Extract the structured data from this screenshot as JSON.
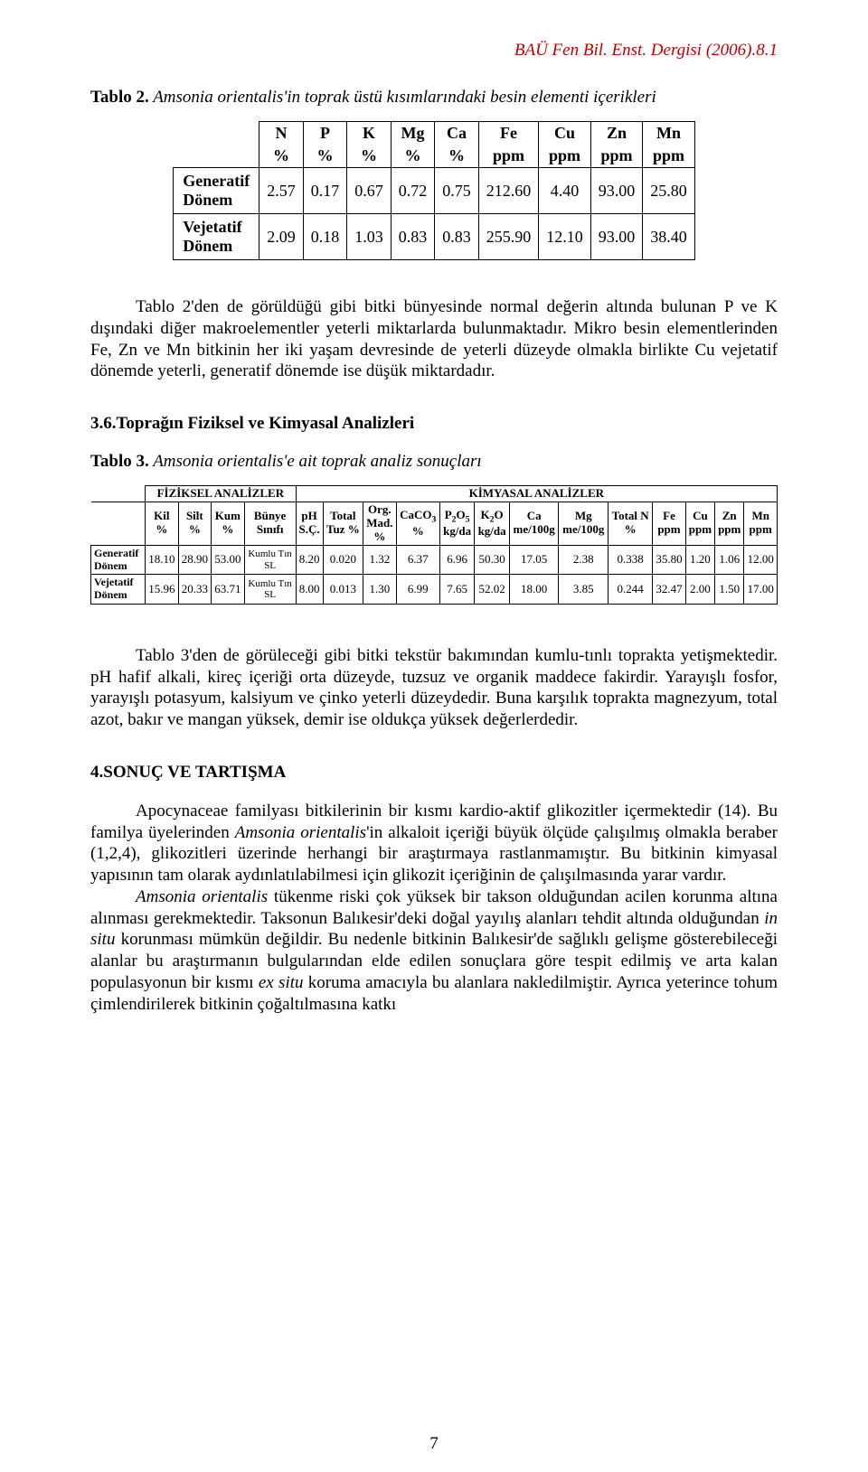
{
  "header": {
    "journal": "BAÜ Fen Bil. Enst. Dergisi (2006).8.1"
  },
  "table2": {
    "caption_label": "Tablo 2.",
    "caption_text": " Amsonia orientalis'in toprak üstü kısımlarındaki besin elementi içerikleri",
    "columns": [
      {
        "top": "N",
        "bot": "%"
      },
      {
        "top": "P",
        "bot": "%"
      },
      {
        "top": "K",
        "bot": "%"
      },
      {
        "top": "Mg",
        "bot": "%"
      },
      {
        "top": "Ca",
        "bot": "%"
      },
      {
        "top": "Fe",
        "bot": "ppm"
      },
      {
        "top": "Cu",
        "bot": "ppm"
      },
      {
        "top": "Zn",
        "bot": "ppm"
      },
      {
        "top": "Mn",
        "bot": "ppm"
      }
    ],
    "rows": [
      {
        "label": "Generatif\nDönem",
        "cells": [
          "2.57",
          "0.17",
          "0.67",
          "0.72",
          "0.75",
          "212.60",
          "4.40",
          "93.00",
          "25.80"
        ]
      },
      {
        "label": "Vejetatif\nDönem",
        "cells": [
          "2.09",
          "0.18",
          "1.03",
          "0.83",
          "0.83",
          "255.90",
          "12.10",
          "93.00",
          "38.40"
        ]
      }
    ]
  },
  "para1": {
    "text": "Tablo 2'den de görüldüğü gibi bitki bünyesinde normal değerin altında bulunan P ve K dışındaki diğer makroelementler yeterli miktarlarda bulunmaktadır. Mikro besin elementlerinden Fe, Zn ve Mn bitkinin her iki yaşam devresinde de yeterli düzeyde olmakla birlikte Cu vejetatif dönemde yeterli, generatif dönemde ise düşük miktardadır."
  },
  "section36": {
    "heading": "3.6.Toprağın Fiziksel ve Kimyasal Analizleri"
  },
  "table3": {
    "caption_label": "Tablo 3.",
    "caption_text": " Amsonia orientalis'e ait toprak analiz sonuçları",
    "group1": "FİZİKSEL ANALİZLER",
    "group2": "KİMYASAL ANALİZLER",
    "cols": {
      "kil": {
        "l1": "Kil",
        "l2": "%"
      },
      "silt": {
        "l1": "Silt",
        "l2": "%"
      },
      "kum": {
        "l1": "Kum",
        "l2": "%"
      },
      "bunye": {
        "l1": "Bünye",
        "l2": "Sınıfı"
      },
      "ph": {
        "l1": "pH",
        "l2": "S.Ç."
      },
      "total": {
        "l1": "Total",
        "l2": "Tuz %"
      },
      "org": {
        "l1": "Org.",
        "l2": "Mad.",
        "l3": "%"
      },
      "caco3": {
        "l1": "CaCO",
        "sub": "3",
        "l2": "%"
      },
      "p2o5": {
        "l1": "P",
        "sub1": "2",
        "mid": "O",
        "sub2": "5",
        "l2": "kg/da"
      },
      "k2o": {
        "l1": "K",
        "sub": "2",
        "mid": "O",
        "l2": "kg/da"
      },
      "ca": {
        "l1": "Ca",
        "l2": "me/100g"
      },
      "mg": {
        "l1": "Mg",
        "l2": "me/100g"
      },
      "totaln": {
        "l1": "Total N",
        "l2": "%"
      },
      "fe": {
        "l1": "Fe",
        "l2": "ppm"
      },
      "cu": {
        "l1": "Cu",
        "l2": "ppm"
      },
      "zn": {
        "l1": "Zn",
        "l2": "ppm"
      },
      "mn": {
        "l1": "Mn",
        "l2": "ppm"
      }
    },
    "rows": [
      {
        "label": "Generatif\nDönem",
        "cells": [
          "18.10",
          "28.90",
          "53.00",
          "Kumlu Tın\nSL",
          "8.20",
          "0.020",
          "1.32",
          "6.37",
          "6.96",
          "50.30",
          "17.05",
          "2.38",
          "0.338",
          "35.80",
          "1.20",
          "1.06",
          "12.00"
        ]
      },
      {
        "label": "Vejetatif\nDönem",
        "cells": [
          "15.96",
          "20.33",
          "63.71",
          "Kumlu Tın\nSL",
          "8.00",
          "0.013",
          "1.30",
          "6.99",
          "7.65",
          "52.02",
          "18.00",
          "3.85",
          "0.244",
          "32.47",
          "2.00",
          "1.50",
          "17.00"
        ]
      }
    ]
  },
  "para2": {
    "text": "Tablo 3'den de görüleceği gibi bitki tekstür bakımından kumlu-tınlı toprakta yetişmektedir. pH hafif alkali, kireç içeriği orta düzeyde, tuzsuz ve organik maddece fakirdir. Yarayışlı fosfor, yarayışlı potasyum, kalsiyum ve çinko yeterli düzeydedir. Buna karşılık toprakta magnezyum, total azot, bakır ve mangan yüksek, demir ise oldukça yüksek değerlerdedir."
  },
  "section4": {
    "heading": "4.SONUÇ VE TARTIŞMA"
  },
  "para3": {
    "text1": "Apocynaceae familyası bitkilerinin bir kısmı kardio-aktif glikozitler içermektedir (14). Bu familya üyelerinden ",
    "ital1": "Amsonia orientalis",
    "text2": "'in alkaloit içeriği büyük ölçüde çalışılmış olmakla beraber (1,2,4), glikozitleri üzerinde herhangi bir araştırmaya rastlanmamıştır. Bu bitkinin kimyasal yapısının tam olarak aydınlatılabilmesi için glikozit içeriğinin de çalışılmasında yarar vardır."
  },
  "para4": {
    "ital1": "Amsonia orientalis",
    "text1": " tükenme riski çok yüksek bir takson olduğundan acilen korunma altına alınması gerekmektedir. Taksonun Balıkesir'deki doğal yayılış alanları tehdit altında olduğundan ",
    "ital2": "in situ",
    "text2": " korunması mümkün değildir. Bu nedenle bitkinin Balıkesir'de sağlıklı gelişme gösterebileceği alanlar bu araştırmanın bulgularından elde edilen sonuçlara göre tespit edilmiş ve arta kalan populasyonun bir kısmı ",
    "ital3": "ex situ",
    "text3": " koruma amacıyla bu alanlara nakledilmiştir. Ayrıca yeterince tohum çimlendirilerek bitkinin çoğaltılmasına katkı"
  },
  "page_number": "7"
}
